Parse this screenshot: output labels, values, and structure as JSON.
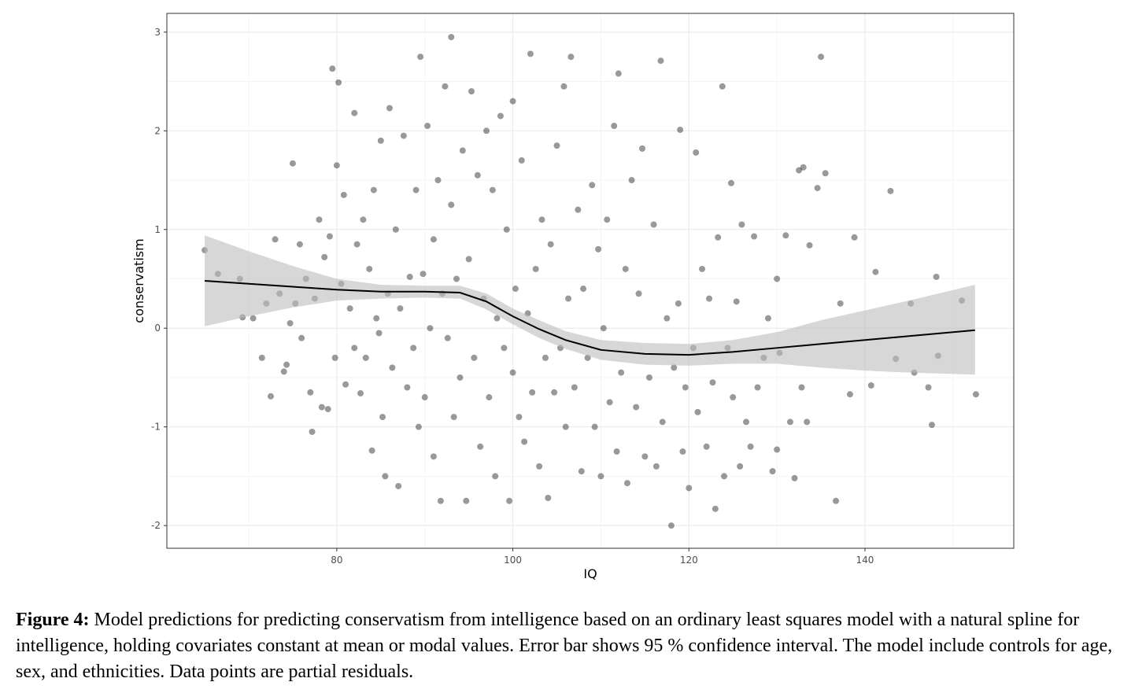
{
  "chart_data": {
    "type": "scatter",
    "x_label": "IQ",
    "y_label": "conservatism",
    "xlim": [
      60.7,
      156.9
    ],
    "ylim": [
      -2.23,
      3.19
    ],
    "xticks": [
      80,
      100,
      120,
      140
    ],
    "yticks": [
      -2,
      -1,
      0,
      1,
      2,
      3
    ],
    "xminor": [
      70,
      90,
      110,
      130,
      150
    ],
    "yminor": [
      -1.5,
      -0.5,
      0.5,
      1.5,
      2.5
    ],
    "grid": true,
    "point_color": "#000000",
    "line_color": "#000000",
    "band_color": "#bdbdbd",
    "x": [
      65,
      66.5,
      69,
      69.3,
      70.5,
      71.5,
      72,
      72.5,
      73,
      73.5,
      74,
      74.3,
      74.7,
      75,
      75.3,
      75.8,
      76,
      76.5,
      77,
      77.2,
      77.5,
      78,
      78.3,
      78.6,
      79,
      79.2,
      79.5,
      79.8,
      80,
      80.2,
      80.5,
      80.8,
      81,
      81.5,
      82,
      82,
      82.3,
      82.7,
      83,
      83.3,
      83.7,
      84,
      84.2,
      84.5,
      84.8,
      85,
      85.2,
      85.5,
      85.8,
      86,
      86.3,
      86.7,
      87,
      87.2,
      87.6,
      88,
      88.3,
      88.7,
      89,
      89.3,
      89.5,
      89.8,
      90,
      90.3,
      90.6,
      91,
      91,
      91.5,
      91.8,
      92,
      92.3,
      92.6,
      93,
      93,
      93.3,
      93.6,
      94,
      94.3,
      94.7,
      95,
      95.3,
      95.6,
      96,
      96.3,
      96.7,
      97,
      97.3,
      97.7,
      98,
      98.2,
      98.6,
      99,
      99.3,
      99.6,
      100,
      100,
      100.3,
      100.7,
      101,
      101.3,
      101.7,
      102,
      102.2,
      102.6,
      103,
      103.3,
      103.7,
      104,
      104.3,
      104.7,
      105,
      105.4,
      105.8,
      106,
      106.3,
      106.6,
      107,
      107.4,
      107.8,
      108,
      108.5,
      109,
      109.3,
      109.7,
      110,
      110.3,
      110.7,
      111,
      111.5,
      111.8,
      112,
      112.3,
      112.8,
      113,
      113.5,
      114,
      114.3,
      114.7,
      115,
      115.5,
      116,
      116.3,
      116.8,
      117,
      117.5,
      118,
      118.3,
      118.8,
      119,
      119.3,
      119.6,
      120,
      120.5,
      120.8,
      121,
      121.5,
      122,
      122.3,
      122.7,
      123,
      123.3,
      123.8,
      124,
      124.4,
      124.8,
      125,
      125.4,
      125.8,
      126,
      126.5,
      127,
      127.4,
      127.8,
      128.5,
      129,
      129.5,
      130,
      130,
      130.3,
      131,
      131.5,
      132,
      132.5,
      132.8,
      133,
      133.4,
      133.7,
      134.6,
      135,
      135.5,
      136.7,
      137.2,
      138.3,
      138.8,
      140.7,
      141.2,
      142.9,
      143.5,
      145.2,
      145.6,
      147.2,
      147.6,
      148.1,
      148.3,
      151,
      152.6
    ],
    "values": [
      0.79,
      0.55,
      0.5,
      0.11,
      0.1,
      -0.3,
      0.25,
      -0.69,
      0.9,
      0.35,
      -0.44,
      -0.37,
      0.05,
      1.67,
      0.25,
      0.85,
      -0.1,
      0.5,
      -0.65,
      -1.05,
      0.3,
      1.1,
      -0.8,
      0.72,
      -0.82,
      0.93,
      2.63,
      -0.3,
      1.65,
      2.49,
      0.45,
      1.35,
      -0.57,
      0.2,
      -0.2,
      2.18,
      0.85,
      -0.66,
      1.1,
      -0.3,
      0.6,
      -1.24,
      1.4,
      0.1,
      -0.05,
      1.9,
      -0.9,
      -1.5,
      0.35,
      2.23,
      -0.4,
      1.0,
      -1.6,
      0.2,
      1.95,
      -0.6,
      0.52,
      -0.2,
      1.4,
      -1.0,
      2.75,
      0.55,
      -0.7,
      2.05,
      0.0,
      -1.3,
      0.9,
      1.5,
      -1.75,
      0.35,
      2.45,
      -0.1,
      2.95,
      1.25,
      -0.9,
      0.5,
      -0.5,
      1.8,
      -1.75,
      0.7,
      2.4,
      -0.3,
      1.55,
      -1.2,
      0.3,
      2.0,
      -0.7,
      1.4,
      -1.5,
      0.1,
      2.15,
      -0.2,
      1.0,
      -1.75,
      2.3,
      -0.45,
      0.4,
      -0.9,
      1.7,
      -1.15,
      0.15,
      2.78,
      -0.65,
      0.6,
      -1.4,
      1.1,
      -0.3,
      -1.72,
      0.85,
      -0.65,
      1.85,
      -0.2,
      2.45,
      -1.0,
      0.3,
      2.75,
      -0.6,
      1.2,
      -1.45,
      0.4,
      -0.3,
      1.45,
      -1.0,
      0.8,
      -1.5,
      0.0,
      1.1,
      -0.75,
      2.05,
      -1.25,
      2.58,
      -0.45,
      0.6,
      -1.57,
      1.5,
      -0.8,
      0.35,
      1.82,
      -1.3,
      -0.5,
      1.05,
      -1.4,
      2.71,
      -0.95,
      0.1,
      -2.0,
      -0.4,
      0.25,
      2.01,
      -1.25,
      -0.6,
      -1.62,
      -0.2,
      1.78,
      -0.85,
      0.6,
      -1.2,
      0.3,
      -0.55,
      -1.83,
      0.92,
      2.45,
      -1.5,
      -0.2,
      1.47,
      -0.7,
      0.27,
      -1.4,
      1.05,
      -0.95,
      -1.2,
      0.93,
      -0.6,
      -0.3,
      0.1,
      -1.45,
      0.5,
      -1.23,
      -0.25,
      0.94,
      -0.95,
      -1.52,
      1.6,
      -0.6,
      1.63,
      -0.95,
      0.84,
      1.42,
      2.75,
      1.57,
      -1.75,
      0.25,
      -0.67,
      0.92,
      -0.58,
      0.57,
      1.39,
      -0.31,
      0.25,
      -0.45,
      -0.6,
      -0.98,
      0.52,
      -0.28,
      0.28,
      -0.67
    ],
    "fit": {
      "x": [
        65,
        70,
        75,
        80,
        85,
        90,
        94,
        97,
        100,
        103,
        106,
        110,
        115,
        120,
        125,
        130,
        135,
        140,
        145,
        152.5
      ],
      "values": [
        0.48,
        0.45,
        0.42,
        0.39,
        0.37,
        0.37,
        0.36,
        0.27,
        0.12,
        -0.01,
        -0.12,
        -0.22,
        -0.26,
        -0.27,
        -0.24,
        -0.2,
        -0.16,
        -0.12,
        -0.08,
        -0.02
      ],
      "lower": [
        0.02,
        0.12,
        0.21,
        0.28,
        0.3,
        0.31,
        0.3,
        0.19,
        0.04,
        -0.1,
        -0.21,
        -0.32,
        -0.37,
        -0.38,
        -0.36,
        -0.36,
        -0.4,
        -0.43,
        -0.45,
        -0.47
      ],
      "upper": [
        0.94,
        0.78,
        0.63,
        0.5,
        0.44,
        0.43,
        0.43,
        0.35,
        0.2,
        0.08,
        -0.03,
        -0.12,
        -0.15,
        -0.16,
        -0.12,
        -0.04,
        0.08,
        0.18,
        0.28,
        0.44
      ]
    }
  },
  "caption": {
    "label": "Figure 4:",
    "text": "Model predictions for predicting conservatism from intelligence based on an ordinary least squares model with a natural spline for intelligence, holding covariates constant at mean or modal values. Error bar shows 95 % confidence interval. The model include controls for age, sex, and ethnicities. Data points are partial residuals."
  }
}
